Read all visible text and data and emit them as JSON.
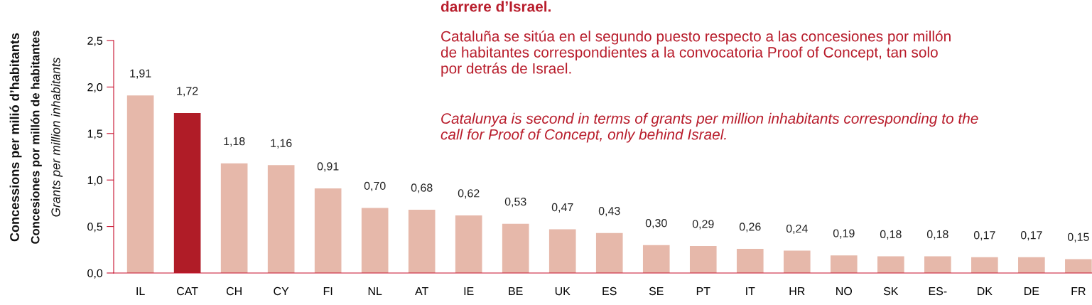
{
  "chart_data": {
    "type": "bar",
    "ylabel": "Concessions per milió d’habitants\nConcesiones por millón de habitantes\nGrants per million inhabitants",
    "categories": [
      "IL",
      "CAT",
      "CH",
      "CY",
      "FI",
      "NL",
      "AT",
      "IE",
      "BE",
      "UK",
      "ES",
      "SE",
      "PT",
      "IT",
      "HR",
      "NO",
      "SK",
      "ES-",
      "DK",
      "DE",
      "FR"
    ],
    "values": [
      1.91,
      1.72,
      1.18,
      1.16,
      0.91,
      0.7,
      0.68,
      0.62,
      0.53,
      0.47,
      0.43,
      0.3,
      0.29,
      0.26,
      0.24,
      0.19,
      0.18,
      0.18,
      0.17,
      0.17,
      0.15
    ],
    "colors": [
      "#e6b8aa",
      "#b01c27",
      "#e6b8aa",
      "#e6b8aa",
      "#e6b8aa",
      "#e6b8aa",
      "#e6b8aa",
      "#e6b8aa",
      "#e6b8aa",
      "#e6b8aa",
      "#e6b8aa",
      "#e6b8aa",
      "#e6b8aa",
      "#e6b8aa",
      "#e6b8aa",
      "#e6b8aa",
      "#e6b8aa",
      "#e6b8aa",
      "#e6b8aa",
      "#e6b8aa",
      "#e6b8aa"
    ],
    "value_labels": [
      "1,91",
      "1,72",
      "1,18",
      "1,16",
      "0,91",
      "0,70",
      "0,68",
      "0,62",
      "0,53",
      "0,47",
      "0,43",
      "0,30",
      "0,29",
      "0,26",
      "0,24",
      "0,19",
      "0,18",
      "0,18",
      "0,17",
      "0,17",
      "0,15"
    ],
    "ylim": [
      0,
      2.5
    ],
    "yticks": [
      {
        "value": 0,
        "label": "0,0"
      },
      {
        "value": 0.5,
        "label": "0,5"
      },
      {
        "value": 1.0,
        "label": "1,0"
      },
      {
        "value": 1.5,
        "label": "1,5"
      },
      {
        "value": 2.0,
        "label": "2,0"
      },
      {
        "value": 2.5,
        "label": "2,5"
      }
    ],
    "grid": false,
    "legend": false,
    "annotations": [
      "darrere d’Israel.",
      "Cataluña se sitúa en el segundo puesto respecto a las concesiones por millón\nde habitantes correspondientes a la convocatoria Proof of Concept, tan solo\npor detrás de Israel.",
      "Catalunya is second in terms of grants per million inhabitants corresponding to the\ncall for Proof of Concept, only behind Israel."
    ]
  }
}
